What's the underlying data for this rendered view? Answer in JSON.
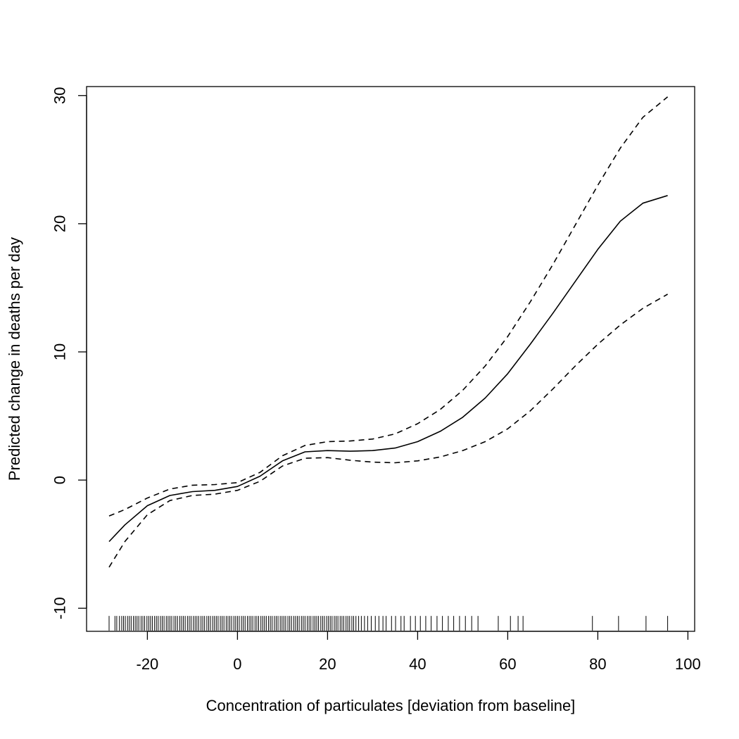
{
  "chart_data": {
    "type": "line",
    "title": "",
    "xlabel": "Concentration of particulates [deviation from baseline]",
    "ylabel": "Predicted change in deaths per day",
    "xlim": [
      -33.5,
      101.5
    ],
    "ylim": [
      -11.8,
      30.7
    ],
    "x_ticks": [
      -20,
      0,
      20,
      40,
      60,
      80,
      100
    ],
    "y_ticks": [
      -10,
      0,
      10,
      20,
      30
    ],
    "x_tick_labels": [
      "-20",
      "0",
      "20",
      "40",
      "60",
      "80",
      "100"
    ],
    "y_tick_labels": [
      "-10",
      "0",
      "10",
      "20",
      "30"
    ],
    "grid": false,
    "legend": "none",
    "series": [
      {
        "style": "solid",
        "x": [
          -28.5,
          -25,
          -20,
          -15,
          -10,
          -5,
          0,
          5,
          10,
          15,
          20,
          25,
          30,
          35,
          40,
          45,
          50,
          55,
          60,
          65,
          70,
          75,
          80,
          85,
          90,
          95.5
        ],
        "y": [
          -4.8,
          -3.5,
          -2.0,
          -1.2,
          -0.9,
          -0.8,
          -0.5,
          0.3,
          1.5,
          2.2,
          2.3,
          2.25,
          2.3,
          2.5,
          3.0,
          3.8,
          4.9,
          6.4,
          8.3,
          10.6,
          13.0,
          15.5,
          18.0,
          20.2,
          21.6,
          22.2
        ]
      },
      {
        "style": "dashed",
        "x": [
          -28.5,
          -25,
          -20,
          -15,
          -10,
          -5,
          0,
          5,
          10,
          15,
          20,
          25,
          30,
          35,
          40,
          45,
          50,
          55,
          60,
          65,
          70,
          75,
          80,
          85,
          90,
          95.5
        ],
        "y": [
          -2.8,
          -2.3,
          -1.4,
          -0.7,
          -0.4,
          -0.35,
          -0.2,
          0.6,
          1.9,
          2.7,
          3.0,
          3.05,
          3.2,
          3.6,
          4.4,
          5.5,
          7.0,
          8.9,
          11.2,
          13.9,
          16.8,
          19.9,
          23.0,
          25.9,
          28.3,
          29.9
        ]
      },
      {
        "style": "dashed",
        "x": [
          -28.5,
          -25,
          -20,
          -15,
          -10,
          -5,
          0,
          5,
          10,
          15,
          20,
          25,
          30,
          35,
          40,
          45,
          50,
          55,
          60,
          65,
          70,
          75,
          80,
          85,
          90,
          95.5
        ],
        "y": [
          -6.8,
          -4.8,
          -2.7,
          -1.6,
          -1.2,
          -1.1,
          -0.8,
          -0.1,
          1.1,
          1.7,
          1.75,
          1.55,
          1.4,
          1.35,
          1.5,
          1.8,
          2.3,
          3.0,
          4.0,
          5.4,
          7.1,
          8.9,
          10.6,
          12.1,
          13.4,
          14.5
        ]
      }
    ],
    "rug": [
      -28.5,
      -27.2,
      -26.8,
      -26.2,
      -25.7,
      -25.3,
      -24.9,
      -24.4,
      -24.0,
      -23.6,
      -23.1,
      -22.7,
      -22.3,
      -21.9,
      -21.4,
      -21.0,
      -20.6,
      -20.1,
      -19.7,
      -19.3,
      -18.9,
      -18.4,
      -18.0,
      -17.6,
      -17.1,
      -16.7,
      -16.3,
      -15.8,
      -15.4,
      -15.0,
      -14.6,
      -14.1,
      -13.7,
      -13.3,
      -12.8,
      -12.4,
      -12.0,
      -11.6,
      -11.1,
      -10.7,
      -10.3,
      -9.8,
      -9.4,
      -9.0,
      -8.6,
      -8.1,
      -7.7,
      -7.3,
      -6.8,
      -6.4,
      -6.0,
      -5.5,
      -5.1,
      -4.7,
      -4.3,
      -3.8,
      -3.4,
      -3.0,
      -2.5,
      -2.1,
      -1.7,
      -1.3,
      -0.8,
      -0.4,
      0.0,
      0.4,
      0.9,
      1.3,
      1.7,
      2.2,
      2.6,
      3.0,
      3.4,
      3.9,
      4.3,
      4.7,
      5.2,
      5.6,
      6.0,
      6.4,
      6.9,
      7.3,
      7.7,
      8.2,
      8.6,
      9.0,
      9.5,
      9.9,
      10.3,
      10.7,
      11.2,
      11.6,
      12.0,
      12.5,
      12.9,
      13.3,
      13.7,
      14.2,
      14.6,
      15.0,
      15.5,
      15.9,
      16.3,
      16.8,
      17.2,
      17.6,
      18.0,
      18.5,
      18.9,
      19.3,
      19.8,
      20.2,
      20.6,
      21.0,
      21.5,
      21.9,
      22.3,
      22.8,
      23.2,
      23.6,
      24.1,
      24.5,
      24.9,
      25.4,
      25.8,
      26.3,
      26.9,
      27.5,
      28.2,
      28.9,
      29.7,
      30.6,
      31.4,
      32.3,
      33.0,
      34.2,
      35.1,
      36.3,
      37.0,
      38.4,
      39.5,
      40.6,
      41.8,
      43.0,
      44.3,
      45.5,
      46.8,
      48.0,
      49.3,
      50.6,
      52.0,
      53.4,
      57.9,
      60.6,
      62.3,
      63.4,
      78.8,
      84.6,
      90.7,
      95.5
    ]
  }
}
